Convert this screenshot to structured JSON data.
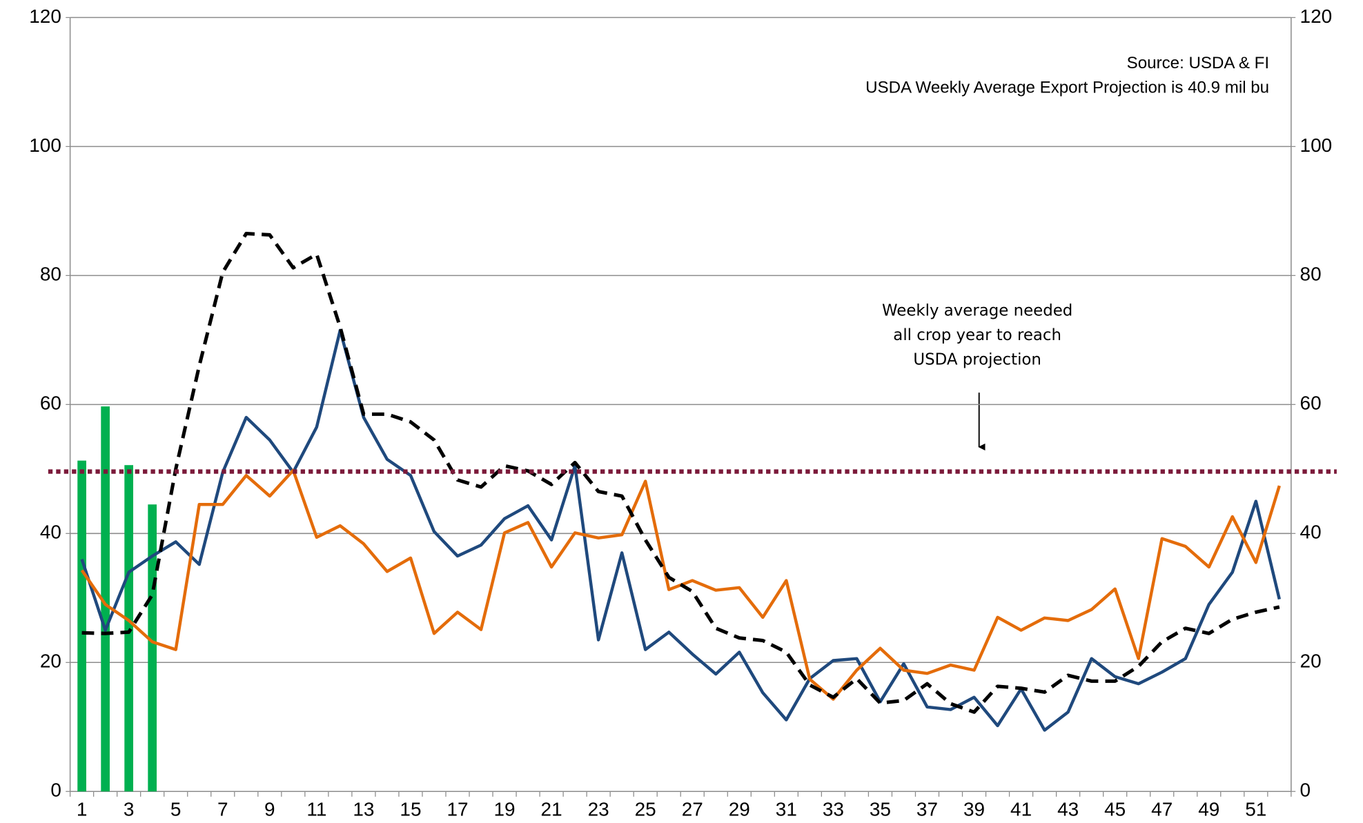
{
  "chart_data": {
    "type": "combo",
    "categories": [
      "1",
      null,
      "3",
      null,
      "5",
      null,
      "7",
      null,
      "9",
      null,
      "11",
      null,
      "13",
      null,
      "15",
      null,
      "17",
      null,
      "19",
      null,
      "21",
      null,
      "23",
      null,
      "25",
      null,
      "27",
      null,
      "29",
      null,
      "31",
      null,
      "33",
      null,
      "35",
      null,
      "37",
      null,
      "39",
      null,
      "41",
      null,
      "43",
      null,
      "45",
      null,
      "47",
      null,
      "49",
      null,
      "51",
      null
    ],
    "series": [
      {
        "type": "bar",
        "color": "#00b050",
        "values": [
          51.3,
          59.7,
          50.6,
          44.5,
          null,
          null,
          null,
          null,
          null,
          null,
          null,
          null,
          null,
          null,
          null,
          null,
          null,
          null,
          null,
          null,
          null,
          null,
          null,
          null,
          null,
          null,
          null,
          null,
          null,
          null,
          null,
          null,
          null,
          null,
          null,
          null,
          null,
          null,
          null,
          null,
          null,
          null,
          null,
          null,
          null,
          null,
          null,
          null,
          null,
          null,
          null,
          null
        ]
      },
      {
        "type": "line",
        "color": "#1f497d",
        "values": [
          36,
          25,
          34,
          36.5,
          38.7,
          35.2,
          49.5,
          58,
          54.5,
          49.5,
          56.5,
          71.5,
          58,
          51.5,
          49,
          40.3,
          36.5,
          38.2,
          42.3,
          44.3,
          39,
          50.5,
          23.5,
          37,
          22,
          24.7,
          21.3,
          18.2,
          21.6,
          15.3,
          11.1,
          17.5,
          20.3,
          20.6,
          13.9,
          19.8,
          13.1,
          12.7,
          14.6,
          10.2,
          15.9,
          9.5,
          12.3,
          20.6,
          17.8,
          16.7,
          18.5,
          20.6,
          29,
          34,
          45,
          29.8
        ]
      },
      {
        "type": "line",
        "color": "#e46c0a",
        "values": [
          34.3,
          29,
          26.5,
          23.2,
          22,
          44.5,
          44.5,
          49,
          45.8,
          49.8,
          39.4,
          41.2,
          38.4,
          34.1,
          36.2,
          24.5,
          27.8,
          25.1,
          40.1,
          41.7,
          34.8,
          40.1,
          39.3,
          39.8,
          48.1,
          31.3,
          32.7,
          31.2,
          31.6,
          27,
          32.7,
          17.4,
          14.3,
          18.8,
          22.2,
          18.8,
          18.3,
          19.6,
          18.8,
          27,
          25,
          26.9,
          26.5,
          28.2,
          31.4,
          20.6,
          39.2,
          38,
          34.8,
          42.6,
          35.5,
          47.4
        ]
      },
      {
        "type": "line",
        "color": "#000000",
        "dashed": true,
        "values": [
          24.6,
          24.5,
          24.7,
          30.5,
          50,
          66,
          80.5,
          86.5,
          86.3,
          81.2,
          83.3,
          72,
          58.5,
          58.5,
          57.3,
          54.5,
          48.3,
          47.2,
          50.5,
          49.7,
          47.6,
          51,
          46.5,
          45.8,
          39,
          33.2,
          31,
          25.3,
          23.8,
          23.4,
          21.6,
          16.5,
          14.6,
          17.5,
          13.7,
          14.1,
          16.7,
          13.6,
          12.3,
          16.3,
          16,
          15.4,
          18,
          17.1,
          17.1,
          19.4,
          23.2,
          25.3,
          24.5,
          26.7,
          27.8,
          28.6
        ]
      }
    ],
    "reference_line": {
      "value": 49.6,
      "color": "#7b1a3a"
    },
    "ylim": [
      0,
      120
    ],
    "yticks": [
      0,
      20,
      40,
      60,
      80,
      100,
      120
    ],
    "y2lim": [
      0,
      120
    ],
    "y2ticks": [
      0,
      20,
      40,
      60,
      80,
      100,
      120
    ],
    "grid": true,
    "source_lines": [
      "Source: USDA & FI",
      "USDA Weekly Average Export Projection is 40.9 mil bu"
    ],
    "annotation_lines": [
      "Weekly average needed",
      "all crop year to reach",
      "USDA projection"
    ]
  }
}
